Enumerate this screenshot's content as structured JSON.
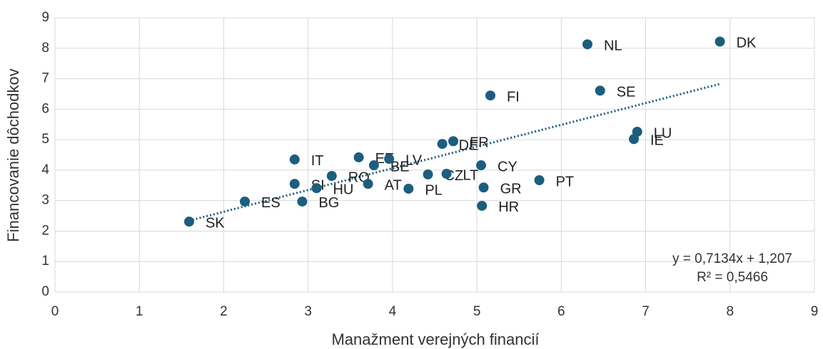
{
  "chart_data": {
    "type": "scatter",
    "xlabel": "Manažment verejných financií",
    "ylabel": "Financovanie dôchodkov",
    "color": "#1b5e7e",
    "labels": [
      "SK",
      "ES",
      "BG",
      "SI",
      "HU",
      "IT",
      "RO",
      "AT",
      "EE",
      "BE",
      "LV",
      "PL",
      "CZ",
      "LT",
      "DE",
      "FR",
      "CY",
      "GR",
      "HR",
      "FI",
      "PT",
      "NL",
      "SE",
      "LU",
      "IE",
      "DK"
    ],
    "x": [
      1.59,
      2.25,
      2.93,
      2.84,
      3.1,
      2.84,
      3.28,
      3.71,
      3.6,
      3.78,
      3.96,
      4.19,
      4.42,
      4.64,
      4.59,
      4.72,
      5.05,
      5.08,
      5.06,
      5.16,
      5.74,
      6.31,
      6.46,
      6.9,
      6.86,
      7.88
    ],
    "y": [
      2.31,
      2.97,
      2.97,
      3.55,
      3.41,
      4.35,
      3.81,
      3.55,
      4.42,
      4.16,
      4.37,
      3.39,
      3.86,
      3.88,
      4.86,
      4.95,
      4.16,
      3.43,
      2.83,
      6.45,
      3.67,
      8.13,
      6.61,
      5.26,
      5.02,
      8.22
    ],
    "xlim": [
      0,
      9
    ],
    "xticks": [
      0,
      1,
      2,
      3,
      4,
      5,
      6,
      7,
      8,
      9
    ],
    "ylim": [
      0,
      9
    ],
    "yticks": [
      0,
      1,
      2,
      3,
      4,
      5,
      6,
      7,
      8,
      9
    ],
    "grid": true,
    "trendline": {
      "slope": 0.7134,
      "intercept": 1.207,
      "equation": "y = 0,7134x + 1,207",
      "r2": "R² = 0,5466"
    }
  }
}
